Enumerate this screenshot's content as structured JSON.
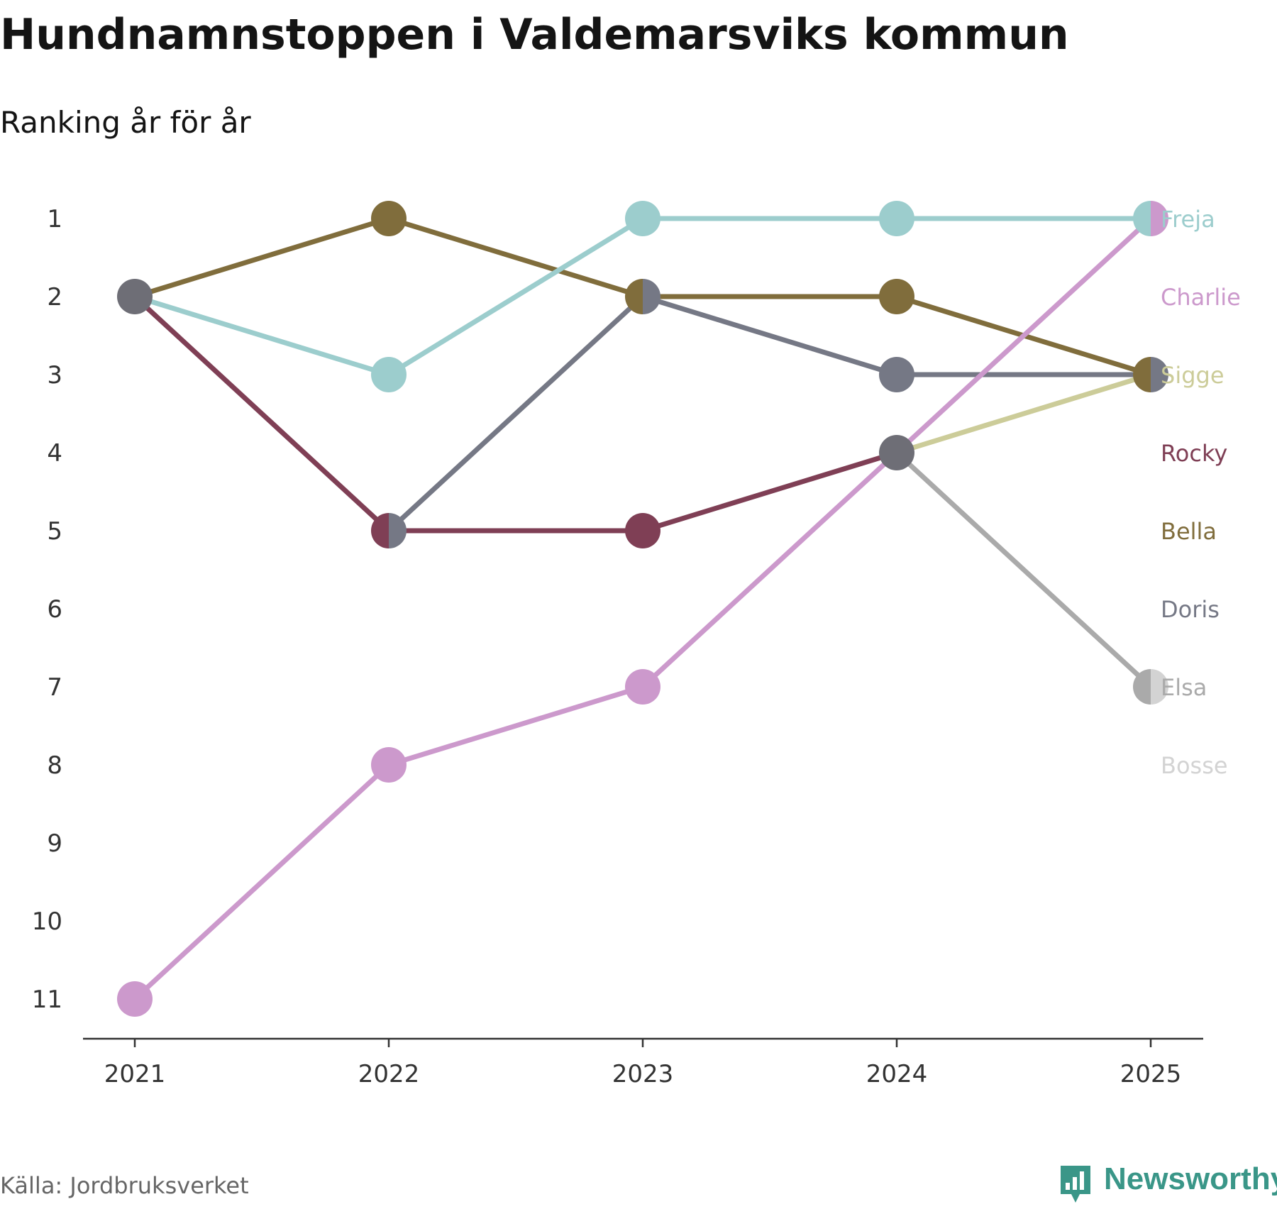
{
  "title": "Hundnamnstoppen i Valdemarsviks kommun",
  "subtitle": "Ranking år för år",
  "source": "Källa: Jordbruksverket",
  "brand": {
    "name": "Newsworthy",
    "color": "#3a9688",
    "icon": "bar-chart-speech-bubble-icon"
  },
  "chart_data": {
    "type": "line",
    "title": "Hundnamnstoppen i Valdemarsviks kommun",
    "subtitle": "Ranking år för år",
    "x": [
      "2021",
      "2022",
      "2023",
      "2024",
      "2025"
    ],
    "y_ticks": [
      1,
      2,
      3,
      4,
      5,
      6,
      7,
      8,
      9,
      10,
      11
    ],
    "ylim": [
      1,
      11
    ],
    "y_inverted": true,
    "marker_color": "#6e6e76",
    "series": [
      {
        "name": "Freja",
        "color": "#9ccdcd",
        "values": [
          2,
          3,
          1,
          1,
          1
        ]
      },
      {
        "name": "Charlie",
        "color": "#cc99cc",
        "values": [
          11,
          8,
          7,
          4,
          1
        ]
      },
      {
        "name": "Sigge",
        "color": "#cccc99",
        "values": [
          null,
          null,
          null,
          4,
          3
        ]
      },
      {
        "name": "Rocky",
        "color": "#7f3f55",
        "values": [
          2,
          5,
          5,
          4,
          null
        ]
      },
      {
        "name": "Bella",
        "color": "#806d3c",
        "values": [
          2,
          1,
          2,
          2,
          3
        ]
      },
      {
        "name": "Doris",
        "color": "#757885",
        "values": [
          null,
          5,
          2,
          3,
          3
        ]
      },
      {
        "name": "Elsa",
        "color": "#aaaaaa",
        "values": [
          null,
          null,
          null,
          4,
          7
        ]
      },
      {
        "name": "Bosse",
        "color": "#d3d3d3",
        "values": [
          null,
          null,
          null,
          null,
          7
        ]
      }
    ]
  }
}
